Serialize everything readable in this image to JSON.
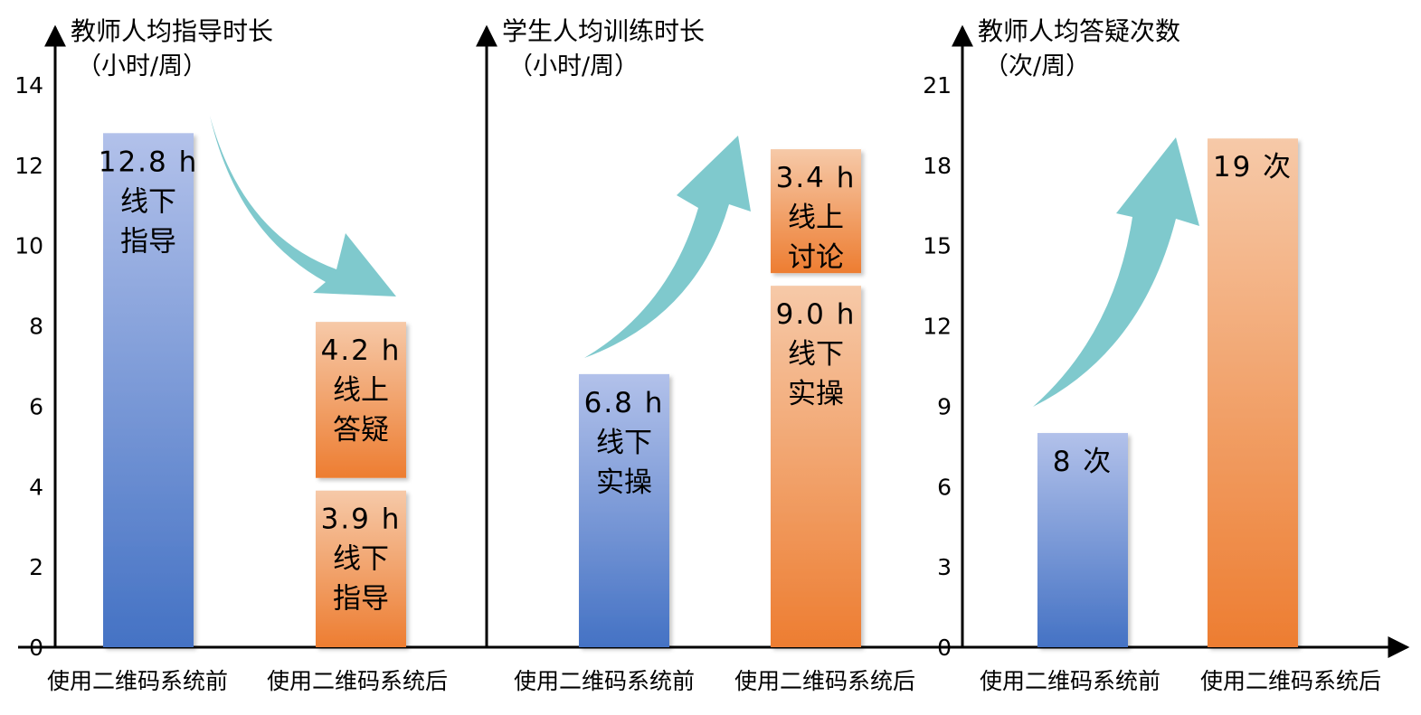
{
  "colors": {
    "before_top": "#b2c1ea",
    "before_bottom": "#4472c4",
    "after_top": "#f6c9a8",
    "after_bottom": "#ed7d31",
    "arrow": "#7fc9cd",
    "axis": "#000000"
  },
  "chart_data": [
    {
      "type": "bar",
      "stacked": true,
      "title": "教师人均指导时长",
      "unit": "（小时/周）",
      "categories": [
        "使用二维码系统前",
        "使用二维码系统后"
      ],
      "ylim": [
        0,
        14
      ],
      "yticks": [
        0,
        2,
        4,
        6,
        8,
        10,
        12,
        14
      ],
      "yticks_shown": true,
      "trend": "down",
      "segments": [
        {
          "category": 0,
          "value": 12.8,
          "label_lines": [
            "12.8 h",
            "线下",
            "指导"
          ]
        },
        {
          "category": 1,
          "value": 3.9,
          "label_lines": [
            "3.9 h",
            "线下",
            "指导"
          ]
        },
        {
          "category": 1,
          "value": 4.2,
          "label_lines": [
            "4.2 h",
            "线上",
            "答疑"
          ]
        }
      ]
    },
    {
      "type": "bar",
      "stacked": true,
      "title": "学生人均训练时长",
      "unit": "（小时/周）",
      "categories": [
        "使用二维码系统前",
        "使用二维码系统后"
      ],
      "ylim": [
        0,
        14
      ],
      "yticks": [],
      "yticks_shown": false,
      "trend": "up",
      "segments": [
        {
          "category": 0,
          "value": 6.8,
          "label_lines": [
            "6.8 h",
            "线下",
            "实操"
          ]
        },
        {
          "category": 1,
          "value": 9.0,
          "label_lines": [
            "9.0 h",
            "线下",
            "实操"
          ]
        },
        {
          "category": 1,
          "value": 3.4,
          "label_lines": [
            "3.4 h",
            "线上",
            "讨论"
          ]
        }
      ]
    },
    {
      "type": "bar",
      "stacked": false,
      "title": "教师人均答疑次数",
      "unit": "（次/周）",
      "categories": [
        "使用二维码系统前",
        "使用二维码系统后"
      ],
      "ylim": [
        0,
        21
      ],
      "yticks": [
        0,
        3,
        6,
        9,
        12,
        15,
        18,
        21
      ],
      "yticks_shown": true,
      "trend": "up",
      "segments": [
        {
          "category": 0,
          "value": 8,
          "label_lines": [
            "8 次"
          ]
        },
        {
          "category": 1,
          "value": 19,
          "label_lines": [
            "19 次"
          ]
        }
      ]
    }
  ]
}
